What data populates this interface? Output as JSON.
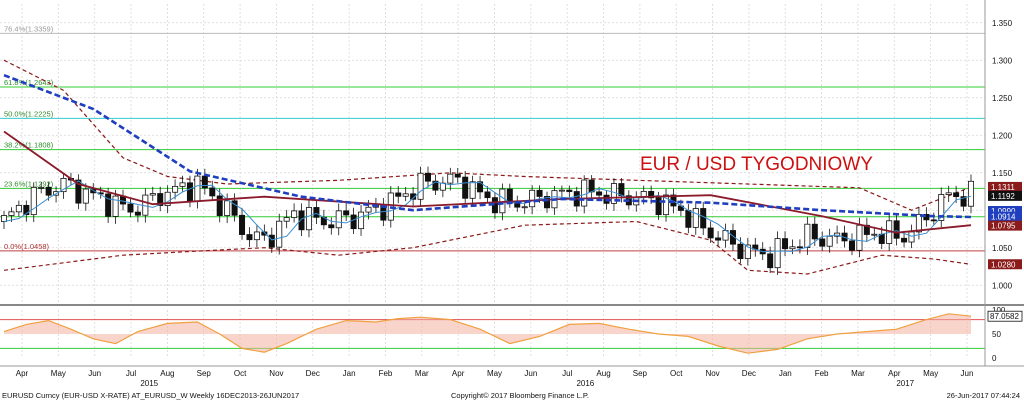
{
  "colors": {
    "background": "#ffffff",
    "grid": "#d8d8d8",
    "fib_line": "#33cc33",
    "fib_cyan": "#33cccc",
    "fib_label": "#2e8b2e",
    "band": "#8b1a1a",
    "ma_long": "#1f3fbf",
    "ma_mid": "#8b1a2a",
    "ma_short": "#3a8fd0",
    "title": "#cc1111",
    "osc_line": "#f0a040",
    "osc_fill_low": "#f4b0a0",
    "osc_fill_high": "#c8c8c8",
    "osc_red": "#e05050",
    "osc_green": "#33cc33"
  },
  "chart_data": [
    {
      "type": "candlestick",
      "title": "EUR / USD TYGODNIOWY",
      "ylim": [
        0.975,
        1.375
      ],
      "yticks": [
        "1.000",
        "1.050",
        "1.100",
        "1.150",
        "1.200",
        "1.250",
        "1.300",
        "1.350"
      ],
      "ytick_values": [
        1.0,
        1.05,
        1.1,
        1.15,
        1.2,
        1.25,
        1.3,
        1.35
      ],
      "fibonacci_levels": [
        {
          "label": "76.4%(1.3359)",
          "value": 1.3359,
          "color": "grey"
        },
        {
          "label": "61.8%(1.2643)",
          "value": 1.2643,
          "color": "green"
        },
        {
          "label": "50.0%(1.2225)",
          "value": 1.2225,
          "color": "cyan"
        },
        {
          "label": "38.2%(1.1808)",
          "value": 1.1808,
          "color": "green"
        },
        {
          "label": "23.6%(1.1292)",
          "value": 1.1292,
          "color": "green"
        },
        {
          "label": "",
          "value": 1.0914,
          "color": "green"
        },
        {
          "label": "0.0%(1.0458)",
          "value": 1.0458,
          "color": "red"
        }
      ],
      "price_labels": [
        {
          "text": "1.1311",
          "value": 1.1311,
          "color": "#8b1a1a"
        },
        {
          "text": "1.1192",
          "value": 1.1192,
          "color": "#111111"
        },
        {
          "text": "1.0990",
          "value": 1.099,
          "color": "#1f3fbf"
        },
        {
          "text": "1.0914",
          "value": 1.0914,
          "color": "#1f3fbf"
        },
        {
          "text": "1.0795",
          "value": 1.0795,
          "color": "#8b1a1a"
        },
        {
          "text": "1.0280",
          "value": 1.028,
          "color": "#8b1a1a"
        }
      ],
      "x_labels": [
        "Apr",
        "May",
        "Jun",
        "Jul",
        "Aug",
        "Sep",
        "Oct",
        "Nov",
        "Dec",
        "Jan",
        "Feb",
        "Mar",
        "Apr",
        "May",
        "Jun",
        "Jul",
        "Aug",
        "Sep",
        "Oct",
        "Nov",
        "Dec",
        "Jan",
        "Feb",
        "Mar",
        "Apr",
        "May",
        "Jun"
      ],
      "year_labels": [
        "2015",
        "2016",
        "2017"
      ],
      "weekly_close_anchors": [
        {
          "week": 0,
          "close": 1.085
        },
        {
          "week": 4,
          "close": 1.12
        },
        {
          "week": 8,
          "close": 1.135
        },
        {
          "week": 13,
          "close": 1.115
        },
        {
          "week": 17,
          "close": 1.1
        },
        {
          "week": 21,
          "close": 1.12
        },
        {
          "week": 26,
          "close": 1.135
        },
        {
          "week": 30,
          "close": 1.1
        },
        {
          "week": 33,
          "close": 1.065
        },
        {
          "week": 35,
          "close": 1.06
        },
        {
          "week": 39,
          "close": 1.095
        },
        {
          "week": 43,
          "close": 1.085
        },
        {
          "week": 47,
          "close": 1.09
        },
        {
          "week": 52,
          "close": 1.11
        },
        {
          "week": 56,
          "close": 1.135
        },
        {
          "week": 61,
          "close": 1.14
        },
        {
          "week": 65,
          "close": 1.115
        },
        {
          "week": 69,
          "close": 1.11
        },
        {
          "week": 74,
          "close": 1.12
        },
        {
          "week": 78,
          "close": 1.125
        },
        {
          "week": 82,
          "close": 1.12
        },
        {
          "week": 87,
          "close": 1.115
        },
        {
          "week": 91,
          "close": 1.1
        },
        {
          "week": 95,
          "close": 1.07
        },
        {
          "week": 100,
          "close": 1.045
        },
        {
          "week": 103,
          "close": 1.04
        },
        {
          "week": 108,
          "close": 1.065
        },
        {
          "week": 113,
          "close": 1.06
        },
        {
          "week": 117,
          "close": 1.07
        },
        {
          "week": 121,
          "close": 1.065
        },
        {
          "week": 124,
          "close": 1.09
        },
        {
          "week": 127,
          "close": 1.12
        },
        {
          "week": 130,
          "close": 1.12
        }
      ],
      "ma_long": [
        {
          "week": 0,
          "value": 1.28
        },
        {
          "week": 12,
          "value": 1.235
        },
        {
          "week": 25,
          "value": 1.152
        },
        {
          "week": 40,
          "value": 1.118
        },
        {
          "week": 55,
          "value": 1.1
        },
        {
          "week": 75,
          "value": 1.115
        },
        {
          "week": 95,
          "value": 1.11
        },
        {
          "week": 110,
          "value": 1.1
        },
        {
          "week": 125,
          "value": 1.092
        },
        {
          "week": 130,
          "value": 1.091
        }
      ],
      "ma_mid": [
        {
          "week": 0,
          "value": 1.205
        },
        {
          "week": 10,
          "value": 1.135
        },
        {
          "week": 20,
          "value": 1.108
        },
        {
          "week": 35,
          "value": 1.118
        },
        {
          "week": 55,
          "value": 1.105
        },
        {
          "week": 75,
          "value": 1.115
        },
        {
          "week": 95,
          "value": 1.12
        },
        {
          "week": 110,
          "value": 1.092
        },
        {
          "week": 120,
          "value": 1.07
        },
        {
          "week": 130,
          "value": 1.08
        }
      ],
      "upper_band": [
        {
          "week": 0,
          "value": 1.3
        },
        {
          "week": 8,
          "value": 1.26
        },
        {
          "week": 16,
          "value": 1.17
        },
        {
          "week": 22,
          "value": 1.145
        },
        {
          "week": 30,
          "value": 1.135
        },
        {
          "week": 45,
          "value": 1.14
        },
        {
          "week": 60,
          "value": 1.15
        },
        {
          "week": 70,
          "value": 1.145
        },
        {
          "week": 85,
          "value": 1.14
        },
        {
          "week": 100,
          "value": 1.135
        },
        {
          "week": 115,
          "value": 1.13
        },
        {
          "week": 122,
          "value": 1.1
        },
        {
          "week": 130,
          "value": 1.131
        }
      ],
      "lower_band": [
        {
          "week": 0,
          "value": 1.02
        },
        {
          "week": 8,
          "value": 1.03
        },
        {
          "week": 16,
          "value": 1.04
        },
        {
          "week": 25,
          "value": 1.045
        },
        {
          "week": 35,
          "value": 1.05
        },
        {
          "week": 45,
          "value": 1.04
        },
        {
          "week": 55,
          "value": 1.05
        },
        {
          "week": 70,
          "value": 1.08
        },
        {
          "week": 85,
          "value": 1.085
        },
        {
          "week": 95,
          "value": 1.06
        },
        {
          "week": 100,
          "value": 1.02
        },
        {
          "week": 108,
          "value": 1.015
        },
        {
          "week": 118,
          "value": 1.04
        },
        {
          "week": 125,
          "value": 1.035
        },
        {
          "week": 130,
          "value": 1.028
        }
      ]
    },
    {
      "type": "area",
      "ylim": [
        0,
        100
      ],
      "yticks": [
        "100",
        "50",
        "0"
      ],
      "ytick_values": [
        100,
        50,
        0
      ],
      "reference_lines": [
        80,
        20
      ],
      "last_value_label": "87.0582",
      "last_value": 87.0582,
      "oscillator": [
        {
          "week": 0,
          "value": 55
        },
        {
          "week": 3,
          "value": 70
        },
        {
          "week": 6,
          "value": 78
        },
        {
          "week": 9,
          "value": 60
        },
        {
          "week": 12,
          "value": 40
        },
        {
          "week": 15,
          "value": 30
        },
        {
          "week": 18,
          "value": 55
        },
        {
          "week": 22,
          "value": 72
        },
        {
          "week": 26,
          "value": 75
        },
        {
          "week": 29,
          "value": 50
        },
        {
          "week": 32,
          "value": 20
        },
        {
          "week": 35,
          "value": 12
        },
        {
          "week": 38,
          "value": 30
        },
        {
          "week": 42,
          "value": 60
        },
        {
          "week": 46,
          "value": 78
        },
        {
          "week": 50,
          "value": 75
        },
        {
          "week": 53,
          "value": 82
        },
        {
          "week": 56,
          "value": 85
        },
        {
          "week": 60,
          "value": 80
        },
        {
          "week": 64,
          "value": 60
        },
        {
          "week": 68,
          "value": 30
        },
        {
          "week": 72,
          "value": 45
        },
        {
          "week": 76,
          "value": 70
        },
        {
          "week": 80,
          "value": 72
        },
        {
          "week": 84,
          "value": 60
        },
        {
          "week": 88,
          "value": 50
        },
        {
          "week": 92,
          "value": 45
        },
        {
          "week": 96,
          "value": 25
        },
        {
          "week": 100,
          "value": 10
        },
        {
          "week": 104,
          "value": 18
        },
        {
          "week": 108,
          "value": 40
        },
        {
          "week": 112,
          "value": 50
        },
        {
          "week": 116,
          "value": 55
        },
        {
          "week": 120,
          "value": 60
        },
        {
          "week": 124,
          "value": 80
        },
        {
          "week": 127,
          "value": 92
        },
        {
          "week": 130,
          "value": 87
        }
      ]
    }
  ],
  "footer": {
    "left": "EURUSD Curncy (EUR-USD X-RATE) AT_EURUSD_W  Weekly 16DEC2013-26JUN2017",
    "center": "Copyright© 2017 Bloomberg Finance L.P.",
    "right": "26-Jun-2017 07:44:24"
  }
}
